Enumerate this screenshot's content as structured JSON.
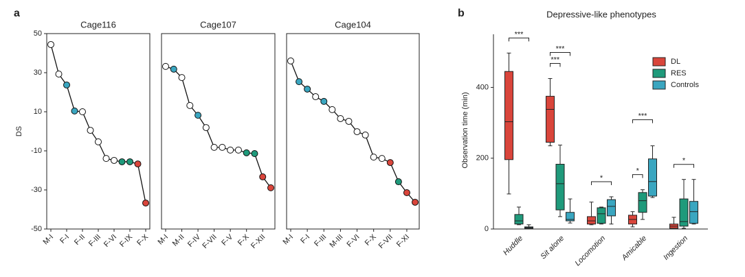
{
  "panel_labels": [
    "a",
    "b"
  ],
  "chart_data": [
    {
      "type": "line",
      "title": "Cage116",
      "ylabel": "DS",
      "ylim": [
        -50,
        50
      ],
      "yticks": [
        -50,
        -30,
        -10,
        10,
        30,
        50
      ],
      "categories": [
        "M-I",
        null,
        "F-I",
        null,
        "F-II",
        null,
        "F-III",
        null,
        "F-VI",
        null,
        "F-IX",
        null,
        "F-X"
      ],
      "values": [
        44.4,
        29.3,
        23.7,
        10.4,
        10,
        0.5,
        -5.4,
        -13.9,
        -14.9,
        -15.6,
        -15.6,
        -16.7,
        -36.7
      ],
      "point_colors": [
        "#ffffff",
        "#ffffff",
        "#3aa6c0",
        "#3aa6c0",
        "#ffffff",
        "#ffffff",
        "#ffffff",
        "#ffffff",
        "#ffffff",
        "#1f9a7b",
        "#1f9a7b",
        "#d9453b",
        "#d9453b"
      ]
    },
    {
      "type": "line",
      "title": "Cage107",
      "ylim": [
        -50,
        50
      ],
      "categories": [
        "M-I",
        null,
        "M-II",
        null,
        "F-IV",
        null,
        "F-VII",
        null,
        "F-V",
        null,
        "F-X",
        null,
        "F-XII",
        null
      ],
      "values": [
        33.2,
        31.8,
        27.5,
        13.2,
        8.2,
        1.9,
        -8.2,
        -8.2,
        -9.6,
        -9.6,
        -11,
        -11.4,
        -23.3,
        -28.9
      ],
      "point_colors": [
        "#ffffff",
        "#3aa6c0",
        "#ffffff",
        "#ffffff",
        "#3aa6c0",
        "#ffffff",
        "#ffffff",
        "#ffffff",
        "#ffffff",
        "#ffffff",
        "#1f9a7b",
        "#1f9a7b",
        "#d9453b",
        "#d9453b"
      ]
    },
    {
      "type": "line",
      "title": "Cage104",
      "ylim": [
        -50,
        50
      ],
      "categories": [
        "M-I",
        null,
        "F-I",
        null,
        "F-III",
        null,
        "M-III",
        null,
        "F-VI",
        null,
        "F-X",
        null,
        "F-VII",
        null,
        "F-XI",
        null
      ],
      "values": [
        36,
        25.4,
        21.6,
        17.7,
        15.3,
        11.1,
        6.5,
        5.1,
        -0.2,
        -1.9,
        -13.2,
        -13.9,
        -16,
        -25.8,
        -31.4,
        -36.3
      ],
      "point_colors": [
        "#ffffff",
        "#3aa6c0",
        "#3aa6c0",
        "#ffffff",
        "#3aa6c0",
        "#ffffff",
        "#ffffff",
        "#ffffff",
        "#ffffff",
        "#ffffff",
        "#ffffff",
        "#ffffff",
        "#d9453b",
        "#1f9a7b",
        "#d9453b",
        "#d9453b"
      ]
    },
    {
      "type": "box",
      "title": "Depressive-like phenotypes",
      "ylabel": "Observation time (min)",
      "ylim": [
        0,
        550
      ],
      "yticks": [
        0,
        200,
        400
      ],
      "categories": [
        "Huddle",
        "Sit alone",
        "Locomotion",
        "Amicable",
        "Ingestion"
      ],
      "series": [
        {
          "name": "DL",
          "color": "#d9453b",
          "min": [
            99,
            235,
            12,
            6,
            0
          ],
          "q1": [
            196,
            245,
            14,
            14,
            2
          ],
          "median": [
            303,
            338,
            23,
            27,
            8
          ],
          "q3": [
            445,
            375,
            35,
            39,
            14
          ],
          "max": [
            497,
            425,
            76,
            49,
            33
          ]
        },
        {
          "name": "RES",
          "color": "#1f9a7b",
          "min": [
            12,
            35,
            14,
            27,
            2
          ],
          "q1": [
            14,
            54,
            16,
            47,
            8
          ],
          "median": [
            23,
            128,
            43,
            80,
            21
          ],
          "q3": [
            41,
            183,
            60,
            103,
            85
          ],
          "max": [
            62,
            237,
            62,
            111,
            140
          ]
        },
        {
          "name": "Controls",
          "color": "#3aa6c0",
          "min": [
            0,
            17,
            14,
            89,
            14
          ],
          "q1": [
            2,
            23,
            37,
            93,
            16
          ],
          "median": [
            4,
            27,
            64,
            134,
            49
          ],
          "q3": [
            6,
            47,
            83,
            198,
            78
          ],
          "max": [
            12,
            85,
            91,
            235,
            140
          ]
        }
      ],
      "annotations": [
        {
          "text": "***",
          "category": 0,
          "from": 0,
          "to": 2
        },
        {
          "text": "***",
          "category": 1,
          "from": 0,
          "to": 1
        },
        {
          "text": "***",
          "category": 1,
          "from": 0,
          "to": 2
        },
        {
          "text": "*",
          "category": 2,
          "from": 0,
          "to": 2
        },
        {
          "text": "*",
          "category": 3,
          "from": 0,
          "to": 1
        },
        {
          "text": "***",
          "category": 3,
          "from": 0,
          "to": 2
        },
        {
          "text": "*",
          "category": 4,
          "from": 0,
          "to": 2
        }
      ]
    }
  ]
}
